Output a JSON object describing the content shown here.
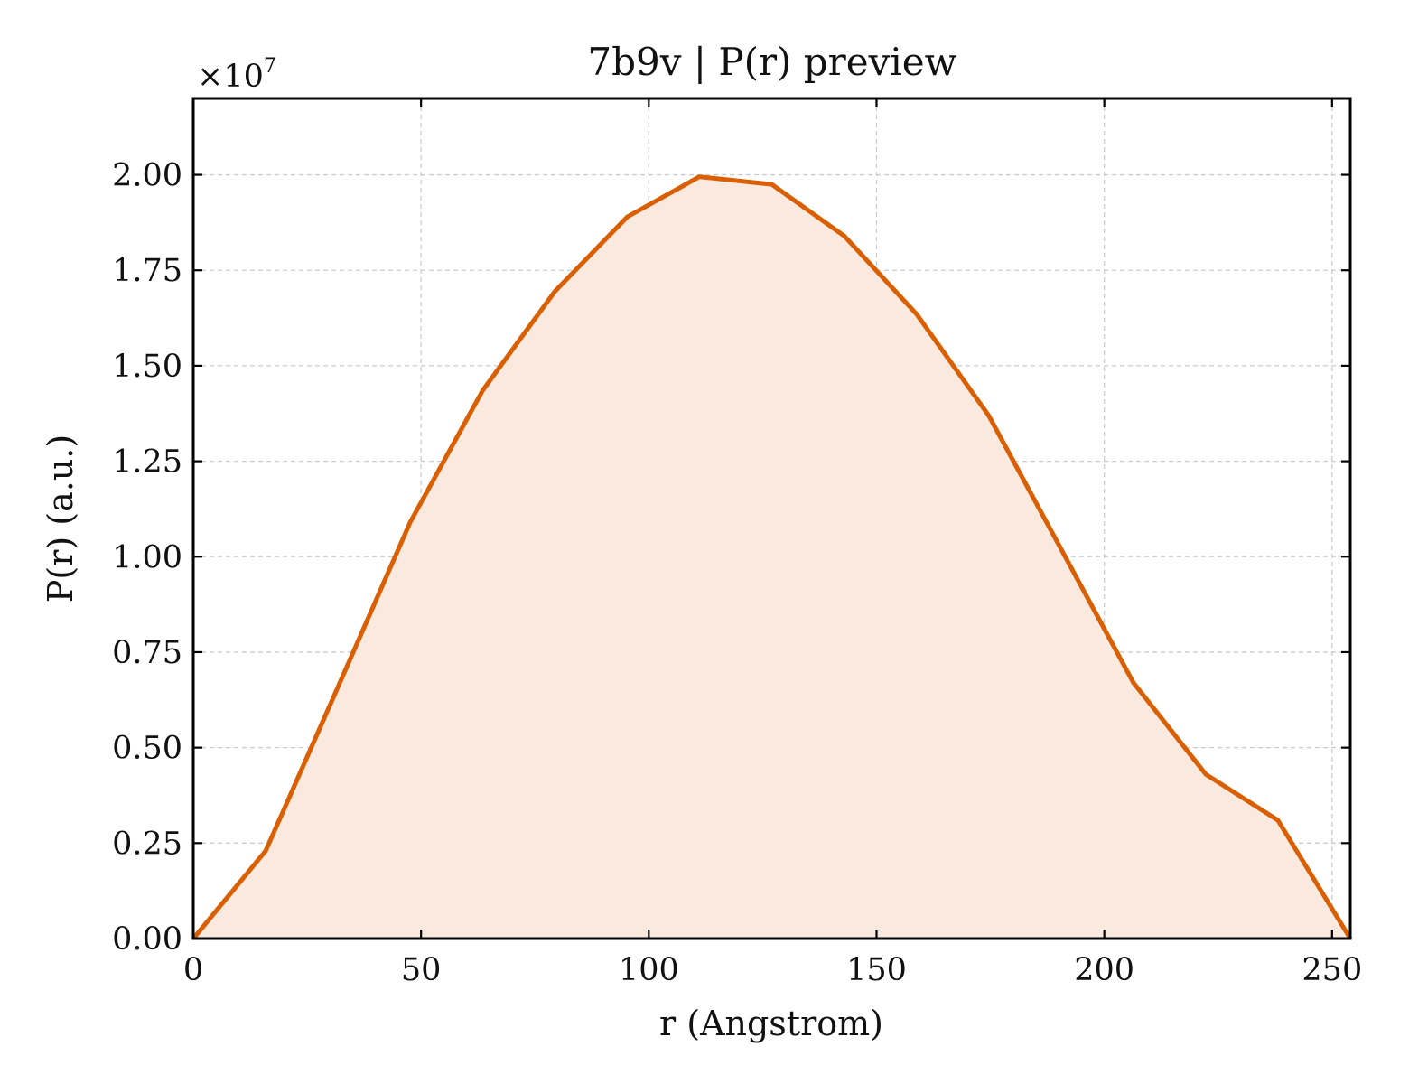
{
  "chart_data": {
    "type": "area",
    "title": "7b9v | P(r) preview",
    "xlabel": "r (Angstrom)",
    "ylabel": "P(r) (a.u.)",
    "y_scale_label": "×10",
    "y_scale_exponent": "7",
    "xlim": [
      0,
      254
    ],
    "ylim": [
      0,
      2.2
    ],
    "x_ticks": [
      0,
      50,
      100,
      150,
      200,
      250
    ],
    "x_tick_labels": [
      "0",
      "50",
      "100",
      "150",
      "200",
      "250"
    ],
    "y_ticks": [
      0,
      0.25,
      0.5,
      0.75,
      1.0,
      1.25,
      1.5,
      1.75,
      2.0
    ],
    "y_tick_labels": [
      "0.00",
      "0.25",
      "0.50",
      "0.75",
      "1.00",
      "1.25",
      "1.50",
      "1.75",
      "2.00"
    ],
    "grid": true,
    "colors": {
      "line": "#d95f02",
      "fill": "#f9e9df"
    },
    "series": [
      {
        "x": [
          0,
          15.9,
          31.8,
          47.6,
          63.5,
          79.4,
          95.3,
          111.1,
          127.0,
          142.9,
          158.8,
          174.6,
          190.5,
          206.4,
          222.3,
          238.1,
          254.0
        ],
        "y": [
          0.0,
          0.23,
          0.66,
          1.09,
          1.435,
          1.695,
          1.89,
          1.995,
          1.975,
          1.84,
          1.635,
          1.37,
          1.02,
          0.67,
          0.43,
          0.31,
          0.0
        ]
      }
    ]
  }
}
